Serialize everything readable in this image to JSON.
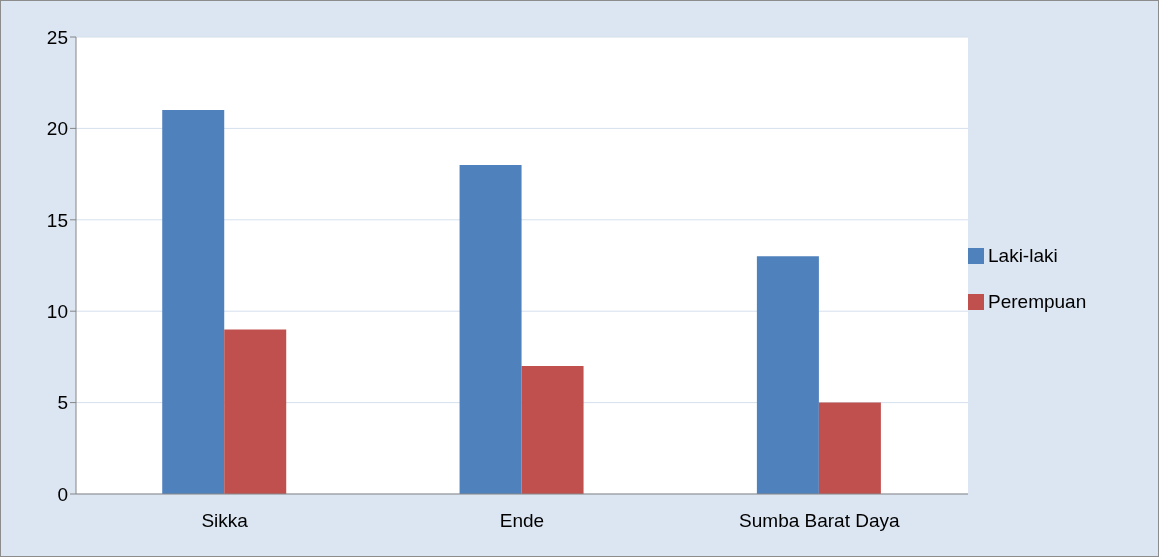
{
  "chart_data": {
    "type": "bar",
    "categories": [
      "Sikka",
      "Ende",
      "Sumba Barat Daya"
    ],
    "series": [
      {
        "name": "Laki-laki",
        "color": "#4f81bd",
        "values": [
          21,
          18,
          13
        ]
      },
      {
        "name": "Perempuan",
        "color": "#c0504d",
        "values": [
          9,
          7,
          5
        ]
      }
    ],
    "ylim": [
      0,
      25
    ],
    "yticks": [
      0,
      5,
      10,
      15,
      20,
      25
    ],
    "grid": "y",
    "legend": "right"
  }
}
